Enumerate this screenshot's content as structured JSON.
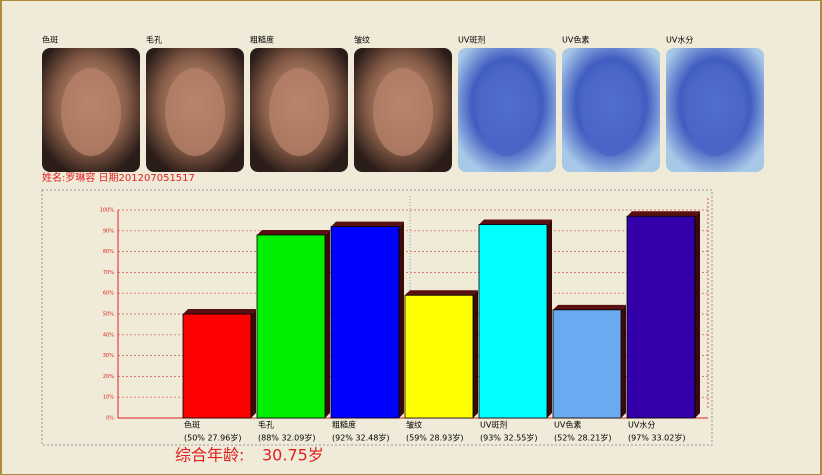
{
  "photos": [
    {
      "label": "色斑"
    },
    {
      "label": "毛孔"
    },
    {
      "label": "粗糙度"
    },
    {
      "label": "皱纹"
    },
    {
      "label": "UV斑剂"
    },
    {
      "label": "UV色素"
    },
    {
      "label": "UV水分"
    }
  ],
  "info": "姓名:罗琳容 日期201207051517",
  "summary": {
    "label": "综合年龄:",
    "value": "30.75岁"
  },
  "chart_data": {
    "type": "bar3d",
    "categories": [
      "色斑",
      "毛孔",
      "粗糙度",
      "皱纹",
      "UV斑剂",
      "UV色素",
      "UV水分"
    ],
    "values": [
      50,
      88,
      92,
      59,
      93,
      52,
      97
    ],
    "value_labels": [
      "(50% 27.96岁)",
      "(88% 32.09岁)",
      "(92% 32.48岁)",
      "(59% 28.93岁)",
      "(93% 32.55岁)",
      "(52% 28.21岁)",
      "(97% 33.02岁)"
    ],
    "colors": [
      "#ff0000",
      "#00ee00",
      "#0000ff",
      "#ffff00",
      "#00ffff",
      "#6aaaf0",
      "#3300aa"
    ],
    "ylim": [
      0,
      100
    ],
    "yticks": [
      {
        "value": 0,
        "label": "0%"
      },
      {
        "value": 10,
        "label": "10%"
      },
      {
        "value": 20,
        "label": "20%"
      },
      {
        "value": 30,
        "label": "30%"
      },
      {
        "value": 40,
        "label": "40%"
      },
      {
        "value": 50,
        "label": "50%"
      },
      {
        "value": 60,
        "label": "60%"
      },
      {
        "value": 70,
        "label": "70%"
      },
      {
        "value": 80,
        "label": "80%"
      },
      {
        "value": 90,
        "label": "90%"
      },
      {
        "value": 100,
        "label": "100%"
      }
    ],
    "grid": true
  }
}
